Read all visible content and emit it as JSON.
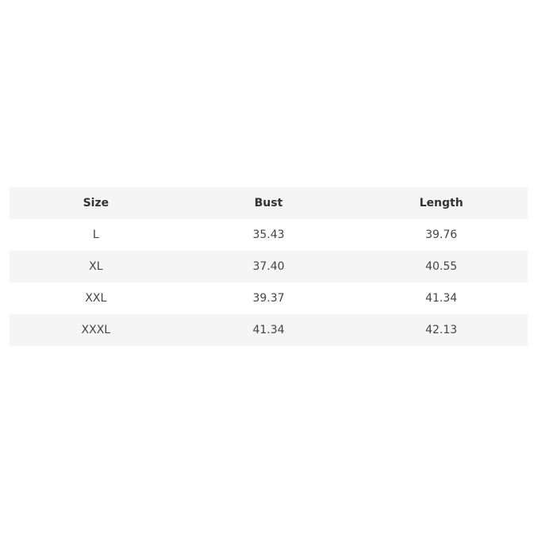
{
  "table": {
    "headers": [
      "Size",
      "Bust",
      "Length"
    ],
    "rows": [
      [
        "L",
        "35.43",
        "39.76"
      ],
      [
        "XL",
        "37.40",
        "40.55"
      ],
      [
        "XXL",
        "39.37",
        "41.34"
      ],
      [
        "XXXL",
        "41.34",
        "42.13"
      ]
    ]
  }
}
